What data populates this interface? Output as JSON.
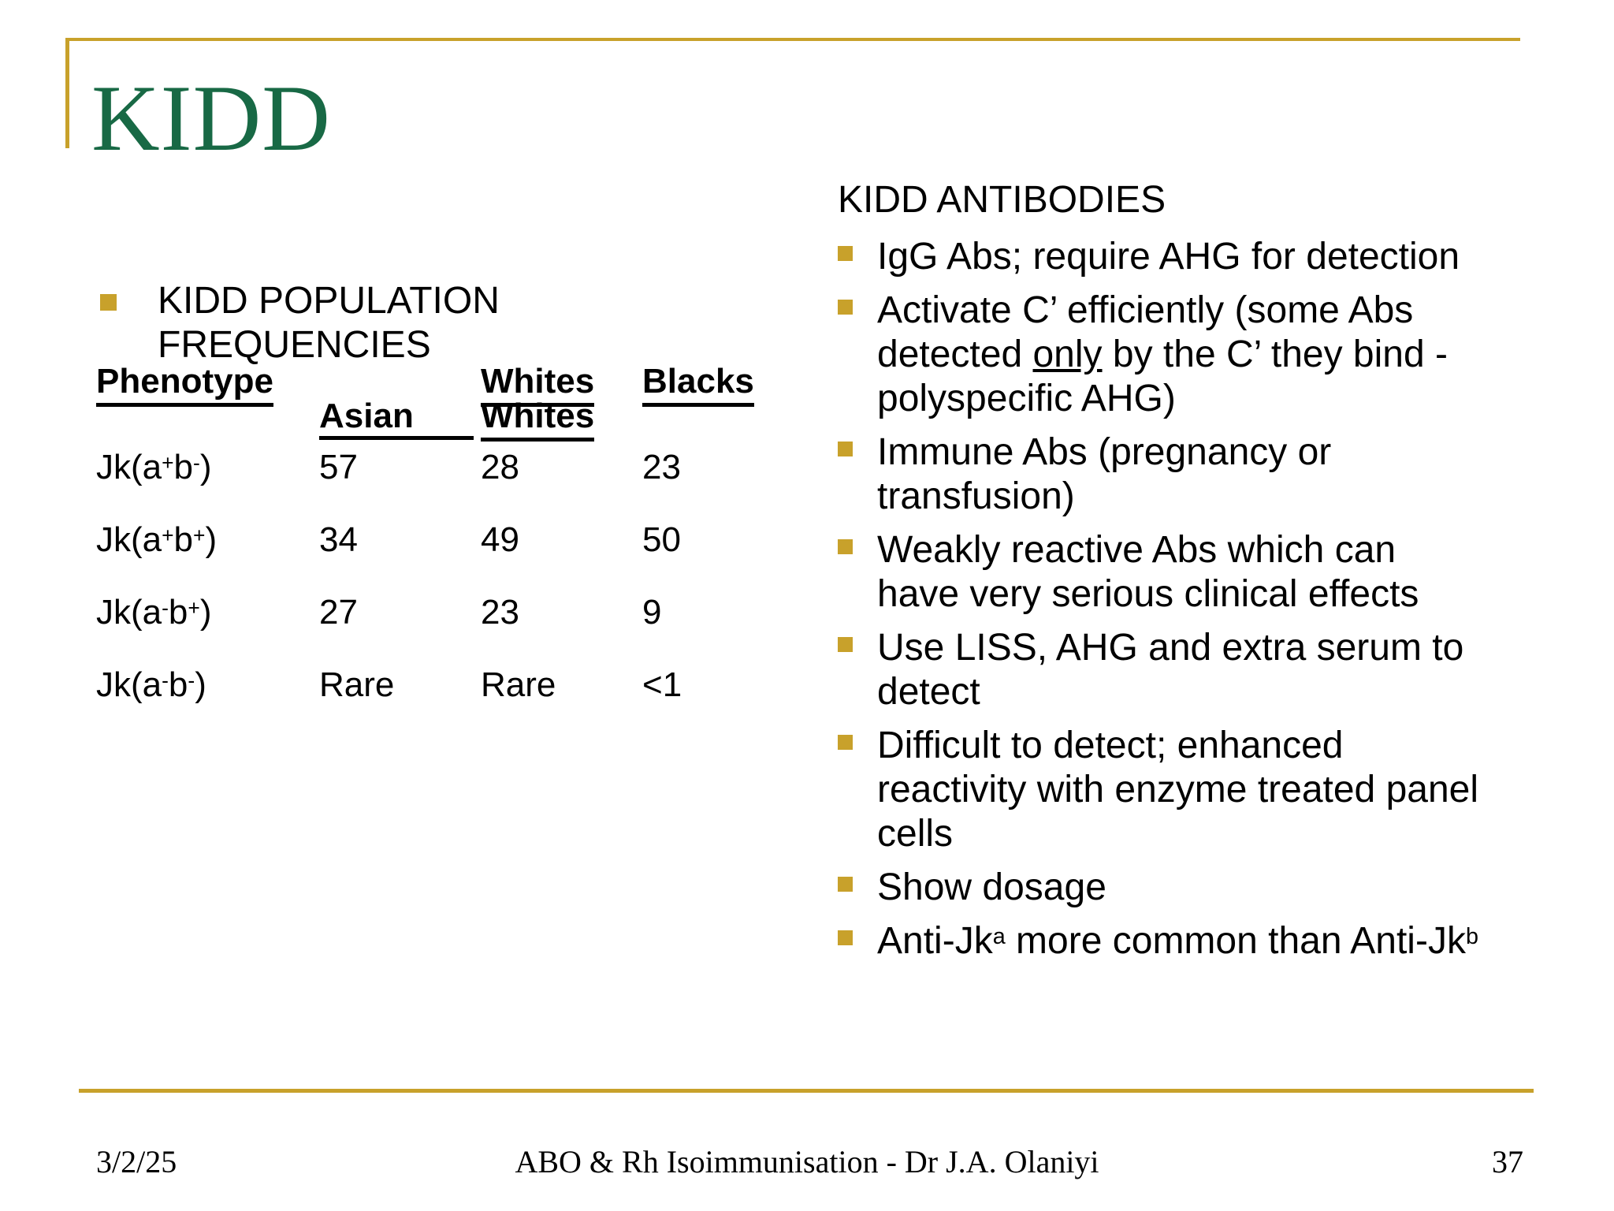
{
  "colors": {
    "accent_gold": "#C8A12B",
    "title_green": "#186945",
    "text_black": "#000000"
  },
  "title": "KIDD",
  "left_panel": {
    "heading": "KIDD POPULATION\nFREQUENCIES",
    "table": {
      "header_row1": {
        "phenotype": "Phenotype",
        "whites": "Whites",
        "blacks": "Blacks"
      },
      "header_row2": {
        "asian": "Asian",
        "whites": "Whites"
      },
      "rows": [
        {
          "phenotype": [
            [
              "t",
              "Jk(a"
            ],
            [
              "sup",
              "+"
            ],
            [
              "t",
              "b"
            ],
            [
              "sup",
              "-"
            ],
            [
              "t",
              ")"
            ]
          ],
          "values": [
            "57",
            "28",
            "23"
          ]
        },
        {
          "phenotype": [
            [
              "t",
              "Jk(a"
            ],
            [
              "sup",
              "+"
            ],
            [
              "t",
              "b"
            ],
            [
              "sup",
              "+"
            ],
            [
              "t",
              ")"
            ]
          ],
          "values": [
            "34",
            "49",
            "50"
          ]
        },
        {
          "phenotype": [
            [
              "t",
              "Jk(a"
            ],
            [
              "sup",
              "-"
            ],
            [
              "t",
              "b"
            ],
            [
              "sup",
              "+"
            ],
            [
              "t",
              ")"
            ]
          ],
          "values": [
            "27",
            "23",
            "9"
          ]
        },
        {
          "phenotype": [
            [
              "t",
              "Jk(a"
            ],
            [
              "sup",
              "-"
            ],
            [
              "t",
              "b"
            ],
            [
              "sup",
              "-"
            ],
            [
              "t",
              ")"
            ]
          ],
          "values": [
            "Rare",
            "Rare",
            "<1"
          ]
        }
      ]
    }
  },
  "right_panel": {
    "heading": "KIDD ANTIBODIES",
    "bullets": [
      {
        "segments": [
          [
            "t",
            "IgG Abs; require AHG for detection"
          ]
        ]
      },
      {
        "segments": [
          [
            "t",
            "Activate C’ efficiently (some Abs\ndetected "
          ],
          [
            "u",
            "only"
          ],
          [
            "t",
            " by the C’ they bind -\npolyspecific AHG)"
          ]
        ]
      },
      {
        "segments": [
          [
            "t",
            "Immune Abs (pregnancy or\ntransfusion)"
          ]
        ]
      },
      {
        "segments": [
          [
            "t",
            "Weakly reactive Abs which can\nhave very serious clinical effects"
          ]
        ]
      },
      {
        "segments": [
          [
            "t",
            "Use LISS, AHG and extra serum to\ndetect"
          ]
        ]
      },
      {
        "segments": [
          [
            "t",
            "Difficult to detect; enhanced\nreactivity with enzyme treated panel\ncells"
          ]
        ]
      },
      {
        "segments": [
          [
            "t",
            "Show dosage"
          ]
        ]
      },
      {
        "segments": [
          [
            "t",
            "Anti-Jk"
          ],
          [
            "sup",
            "a"
          ],
          [
            "t",
            " more common than Anti-Jk"
          ],
          [
            "sup",
            "b"
          ]
        ]
      }
    ]
  },
  "footer": {
    "date": "3/2/25",
    "center": "ABO & Rh Isoimmunisation - Dr J.A. Olaniyi",
    "page_number": "37"
  }
}
